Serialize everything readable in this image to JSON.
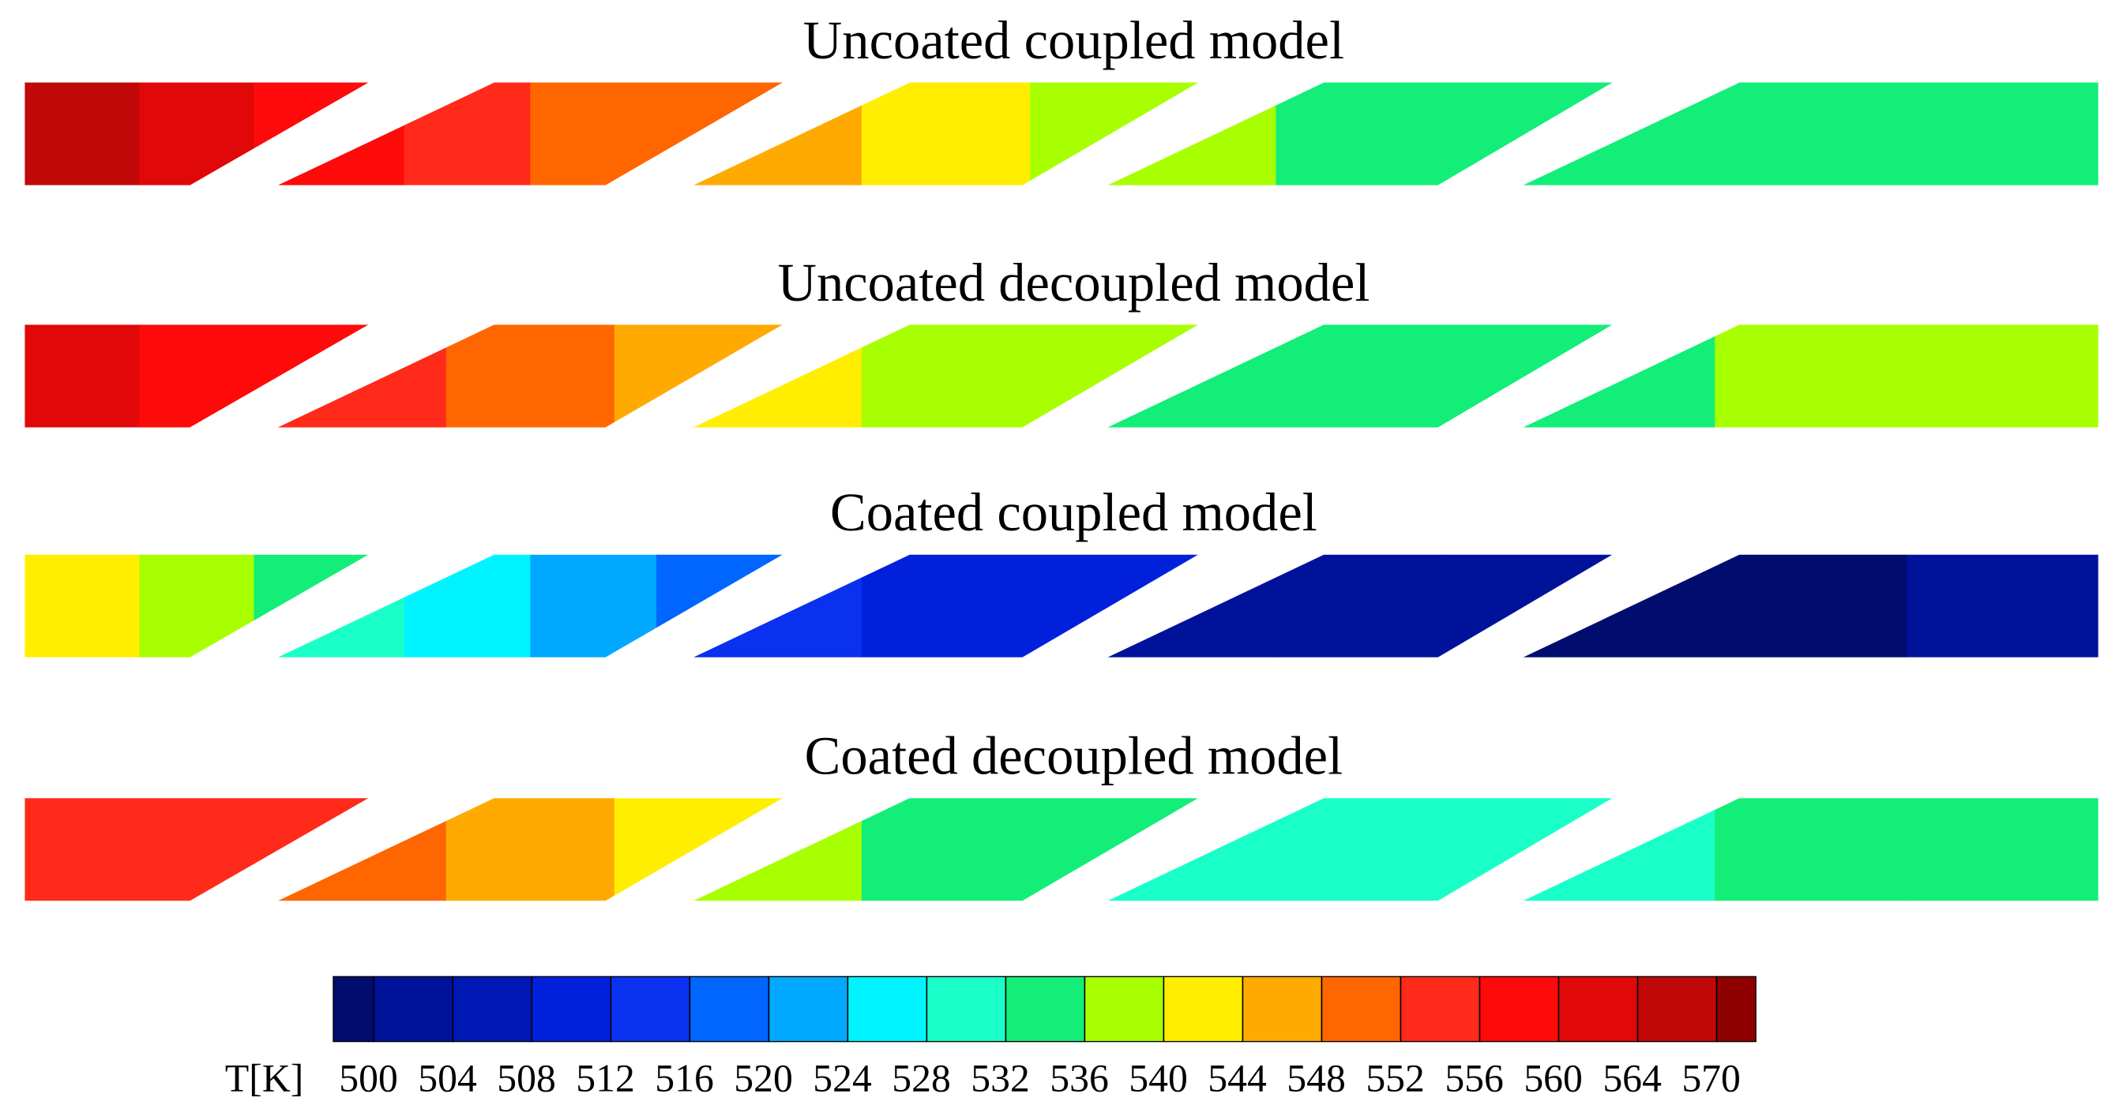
{
  "chart_data": {
    "type": "contour",
    "panels": [
      {
        "title": "Uncoated coupled model",
        "values": [
          [
            566,
            562,
            558
          ],
          [
            556,
            554,
            551,
            548
          ],
          [
            546,
            542,
            538
          ],
          [
            537,
            534,
            534
          ],
          [
            534,
            534,
            534
          ]
        ]
      },
      {
        "title": "Uncoated decoupled model",
        "values": [
          [
            562,
            558,
            557
          ],
          [
            554,
            550,
            546
          ],
          [
            542,
            538,
            538
          ],
          [
            534,
            534,
            534
          ],
          [
            534,
            538,
            538
          ]
        ]
      },
      {
        "title": "Coated coupled model",
        "values": [
          [
            542,
            538,
            534
          ],
          [
            530,
            526,
            522,
            518
          ],
          [
            514,
            510,
            510
          ],
          [
            502,
            502,
            502
          ],
          [
            498,
            498,
            502
          ]
        ]
      },
      {
        "title": "Coated decoupled model",
        "values": [
          [
            554,
            553,
            552
          ],
          [
            550,
            546,
            542
          ],
          [
            538,
            534,
            534
          ],
          [
            530,
            530,
            530
          ],
          [
            530,
            534,
            534
          ]
        ]
      }
    ],
    "colorbar": {
      "label": "T[K]",
      "ticks": [
        500,
        504,
        508,
        512,
        516,
        520,
        524,
        528,
        532,
        536,
        540,
        544,
        548,
        552,
        556,
        560,
        564,
        570
      ],
      "colors": [
        "#000c6e",
        "#00129a",
        "#0018b4",
        "#0020dc",
        "#0a30f0",
        "#0066ff",
        "#00a8ff",
        "#00f4ff",
        "#1affc8",
        "#12ee78",
        "#a8ff00",
        "#ffee00",
        "#ffaa00",
        "#ff6600",
        "#ff2a1a",
        "#ff0a0a",
        "#e00808",
        "#c00808",
        "#8e0000"
      ]
    }
  }
}
